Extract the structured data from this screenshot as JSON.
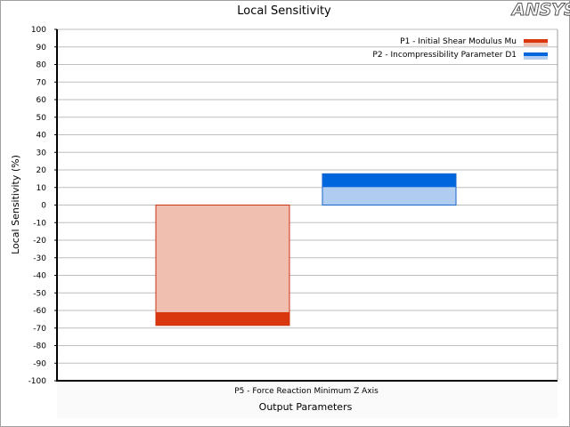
{
  "logo": {
    "text": "ANSYS",
    "colors": {
      "fill": "#ffffff",
      "stroke": "#555555",
      "accent": "#ffb81c"
    }
  },
  "chart_data": {
    "type": "bar",
    "title": "Local Sensitivity",
    "xlabel": "Output Parameters",
    "ylabel": "Local Sensitivity (%)",
    "categories": [
      "P5 - Force Reaction Minimum Z Axis"
    ],
    "ylim": [
      -100,
      100
    ],
    "yticks": [
      100,
      90,
      80,
      70,
      60,
      50,
      40,
      30,
      20,
      10,
      0,
      -10,
      -20,
      -30,
      -40,
      -50,
      -60,
      -70,
      -80,
      -90,
      -100
    ],
    "grid": true,
    "legend_position": "top-right",
    "series": [
      {
        "name": "P1 - Initial Shear Modulus Mu",
        "values": [
          -68.5
        ],
        "inner_values": [
          -61
        ],
        "colors": {
          "dark": "#d9380f",
          "light": "#f0bfb0",
          "stroke": "#cc3311"
        }
      },
      {
        "name": "P2 - Incompressibility Parameter D1",
        "values": [
          17.8
        ],
        "inner_values": [
          10.2
        ],
        "colors": {
          "dark": "#0066dd",
          "light": "#b0ccf0",
          "stroke": "#1a66cc"
        }
      }
    ]
  }
}
